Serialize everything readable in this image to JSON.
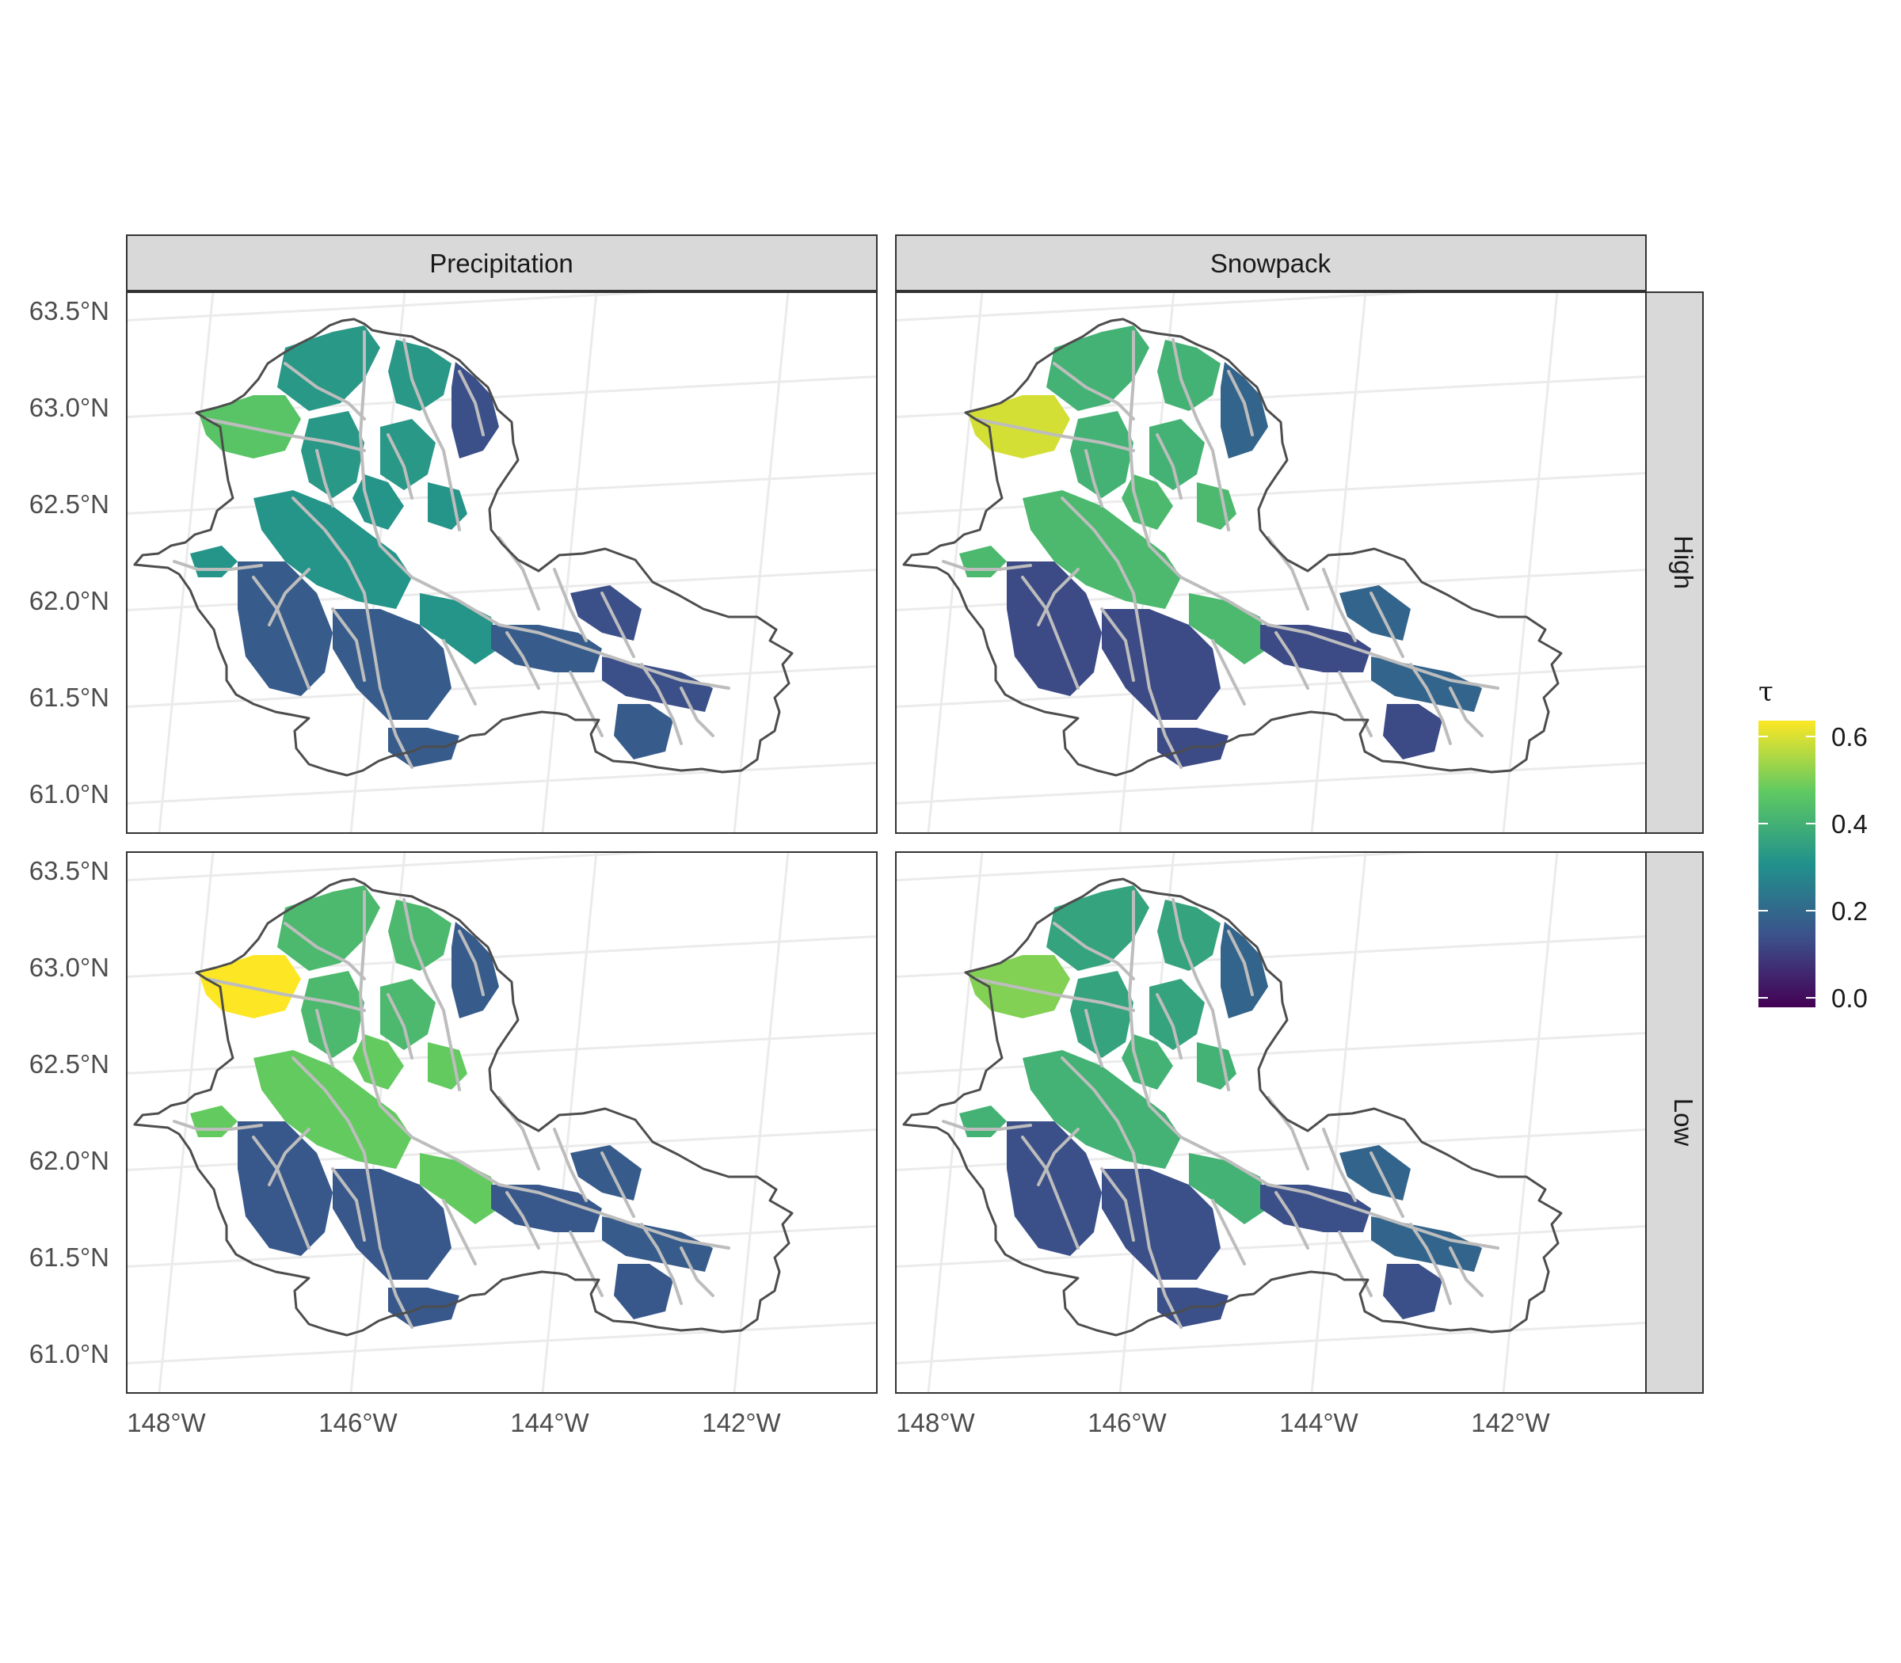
{
  "facets": {
    "columns": [
      "Precipitation",
      "Snowpack"
    ],
    "rows": [
      "High",
      "Low"
    ]
  },
  "axes": {
    "y_ticks": [
      "63.5°N",
      "63.0°N",
      "62.5°N",
      "62.0°N",
      "61.5°N",
      "61.0°N"
    ],
    "x_ticks": [
      "148°W",
      "146°W",
      "144°W",
      "142°W"
    ]
  },
  "legend": {
    "title": "τ",
    "ticks": [
      "0.6",
      "0.4",
      "0.2",
      "0.0"
    ],
    "colors": [
      "#440154",
      "#3b528b",
      "#21918c",
      "#5ec962",
      "#fde725"
    ],
    "range": [
      -0.02,
      0.63
    ]
  },
  "colors": {
    "rivers": "#bdbdbd",
    "boundary": "#4d4d4d",
    "strip_fill": "#d9d9d9",
    "grid": "#ebebeb"
  },
  "chart_data": {
    "type": "map",
    "facet_cols": "Precipitation / Snowpack",
    "facet_rows": "High / Low",
    "xlim": [
      -148.3,
      -140.5
    ],
    "ylim": [
      60.8,
      63.7
    ],
    "fill_variable": "τ",
    "fill_range": [
      0.0,
      0.6
    ],
    "panels": [
      {
        "col": "Precipitation",
        "row": "High",
        "north_value": 0.33,
        "northwest_value": 0.45,
        "center_value": 0.32,
        "south_value": 0.18,
        "east_value": 0.15
      },
      {
        "col": "Snowpack",
        "row": "High",
        "north_value": 0.4,
        "northwest_value": 0.58,
        "center_value": 0.42,
        "south_value": 0.14,
        "east_value": 0.2
      },
      {
        "col": "Precipitation",
        "row": "Low",
        "north_value": 0.42,
        "northwest_value": 0.62,
        "center_value": 0.47,
        "south_value": 0.17,
        "east_value": 0.18
      },
      {
        "col": "Snowpack",
        "row": "Low",
        "north_value": 0.36,
        "northwest_value": 0.5,
        "center_value": 0.4,
        "south_value": 0.15,
        "east_value": 0.2
      }
    ]
  }
}
